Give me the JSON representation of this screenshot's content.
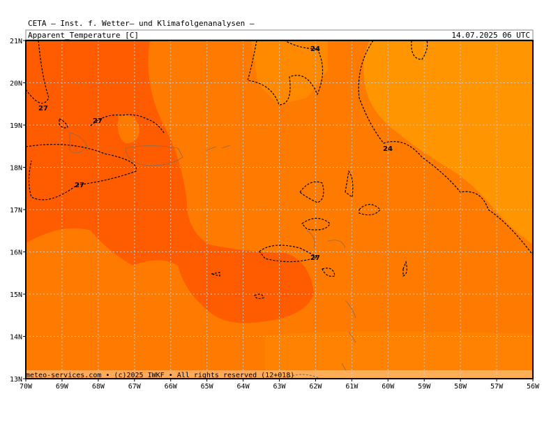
{
  "header": {
    "title": "CETA — Inst. f. Wetter— und Klimafolgenanalysen —",
    "variable": "Apparent_Temperature [C]",
    "valid_time": "14.07.2025 06 UTC"
  },
  "map": {
    "lon_labels": [
      "70W",
      "69W",
      "68W",
      "67W",
      "66W",
      "65W",
      "64W",
      "63W",
      "62W",
      "61W",
      "60W",
      "59W",
      "58W",
      "57W",
      "56W"
    ],
    "lat_labels": [
      "21N",
      "20N",
      "19N",
      "18N",
      "17N",
      "16N",
      "15N",
      "14N",
      "13N"
    ],
    "contour_labels": [
      "27",
      "27",
      "27",
      "24",
      "24",
      "27"
    ]
  },
  "footer": {
    "credit": "meteo-services.com • (c)2025 IWKF • All rights reserved (12+018)"
  }
}
